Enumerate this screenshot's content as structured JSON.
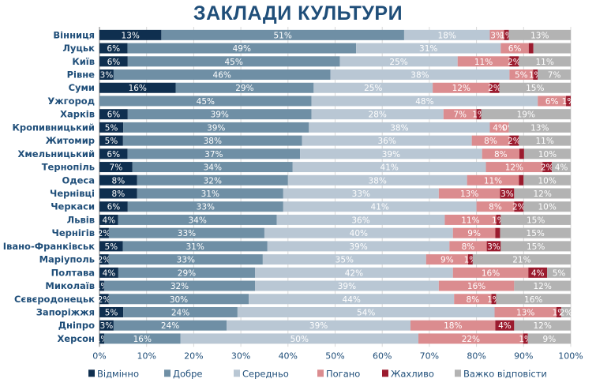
{
  "chart_data": {
    "type": "bar",
    "orientation": "horizontal",
    "stacked": true,
    "title": "ЗАКЛАДИ КУЛЬТУРИ",
    "xlim": [
      0,
      100
    ],
    "x_ticks": [
      "0%",
      "10%",
      "20%",
      "30%",
      "40%",
      "50%",
      "60%",
      "70%",
      "80%",
      "90%",
      "100%"
    ],
    "categories": [
      "Вінниця",
      "Луцьк",
      "Київ",
      "Рівне",
      "Суми",
      "Ужгород",
      "Харків",
      "Кропивницький",
      "Житомир",
      "Хмельницький",
      "Тернопіль",
      "Одеса",
      "Чернівці",
      "Черкаси",
      "Львів",
      "Чернігів",
      "Івано-Франківськ",
      "Маріуполь",
      "Полтава",
      "Миколаїв",
      "Сєвєродонецьк",
      "Запоріжжя",
      "Дніпро",
      "Херсон"
    ],
    "series": [
      {
        "name": "Відмінно",
        "color": "#0f2f4f",
        "text_color": "#ffffff",
        "values": [
          13,
          6,
          6,
          3,
          16,
          0,
          6,
          5,
          5,
          6,
          7,
          8,
          8,
          6,
          4,
          2,
          5,
          2,
          4,
          1,
          2,
          5,
          3,
          1
        ]
      },
      {
        "name": "Добре",
        "color": "#6f8fa5",
        "text_color": "#ffffff",
        "values": [
          51,
          49,
          45,
          46,
          29,
          45,
          39,
          39,
          38,
          37,
          34,
          32,
          31,
          33,
          34,
          33,
          31,
          33,
          29,
          32,
          30,
          24,
          24,
          16
        ]
      },
      {
        "name": "Середньо",
        "color": "#b9c7d4",
        "text_color": "#ffffff",
        "values": [
          18,
          31,
          25,
          38,
          25,
          48,
          28,
          38,
          36,
          39,
          41,
          38,
          33,
          41,
          36,
          40,
          39,
          35,
          42,
          39,
          44,
          54,
          39,
          50
        ]
      },
      {
        "name": "Погано",
        "color": "#db8c8f",
        "text_color": "#ffffff",
        "values": [
          3,
          6,
          11,
          5,
          12,
          6,
          7,
          4,
          8,
          8,
          12,
          11,
          13,
          8,
          11,
          9,
          8,
          9,
          16,
          16,
          8,
          13,
          18,
          22
        ]
      },
      {
        "name": "Жахливо",
        "color": "#9b1b2e",
        "text_color": "#ffffff",
        "values": [
          1,
          1,
          2,
          1,
          2,
          1,
          1,
          0,
          2,
          1,
          2,
          1,
          3,
          2,
          1,
          1,
          3,
          1,
          4,
          0,
          1,
          1,
          4,
          1
        ]
      },
      {
        "name": "Важко відповісти",
        "color": "#b3b3b3",
        "text_color": "#ffffff",
        "values": [
          13,
          8,
          11,
          7,
          15,
          0,
          19,
          13,
          11,
          10,
          4,
          10,
          12,
          10,
          15,
          15,
          15,
          21,
          5,
          12,
          16,
          2,
          12,
          9
        ]
      }
    ],
    "data_labels": [
      [
        "13%",
        "51%",
        "18%",
        "3%",
        "1%",
        "13%"
      ],
      [
        "6%",
        "49%",
        "31%",
        "6%",
        "",
        ""
      ],
      [
        "6%",
        "45%",
        "25%",
        "11%",
        "2%",
        "11%"
      ],
      [
        "3%",
        "46%",
        "38%",
        "5%",
        "1%",
        "7%"
      ],
      [
        "16%",
        "29%",
        "25%",
        "12%",
        "2%",
        "15%"
      ],
      [
        "",
        "45%",
        "48%",
        "6%",
        "1%",
        ""
      ],
      [
        "6%",
        "39%",
        "28%",
        "7%",
        "1%",
        "19%"
      ],
      [
        "5%",
        "39%",
        "38%",
        "4%",
        "0%",
        "13%"
      ],
      [
        "5%",
        "38%",
        "36%",
        "8%",
        "2%",
        "11%"
      ],
      [
        "6%",
        "37%",
        "39%",
        "8%",
        "",
        "10%"
      ],
      [
        "7%",
        "34%",
        "41%",
        "12%",
        "2%",
        "4%"
      ],
      [
        "8%",
        "32%",
        "38%",
        "11%",
        "",
        "10%"
      ],
      [
        "8%",
        "31%",
        "33%",
        "13%",
        "3%",
        "12%"
      ],
      [
        "6%",
        "33%",
        "41%",
        "8%",
        "2%",
        "10%"
      ],
      [
        "4%",
        "34%",
        "36%",
        "11%",
        "1%",
        "15%"
      ],
      [
        "2%",
        "33%",
        "40%",
        "9%",
        "",
        "15%"
      ],
      [
        "5%",
        "31%",
        "39%",
        "8%",
        "3%",
        "15%"
      ],
      [
        "2%",
        "33%",
        "35%",
        "9%",
        "1%",
        "21%"
      ],
      [
        "4%",
        "29%",
        "42%",
        "16%",
        "4%",
        "5%"
      ],
      [
        "1%",
        "32%",
        "39%",
        "16%",
        "",
        "12%"
      ],
      [
        "2%",
        "30%",
        "44%",
        "8%",
        "1%",
        "16%"
      ],
      [
        "5%",
        "24%",
        "54%",
        "13%",
        "1%",
        "2%"
      ],
      [
        "3%",
        "24%",
        "39%",
        "18%",
        "4%",
        "12%"
      ],
      [
        "1%",
        "16%",
        "50%",
        "22%",
        "1%",
        "9%"
      ]
    ],
    "legend_position": "bottom"
  }
}
